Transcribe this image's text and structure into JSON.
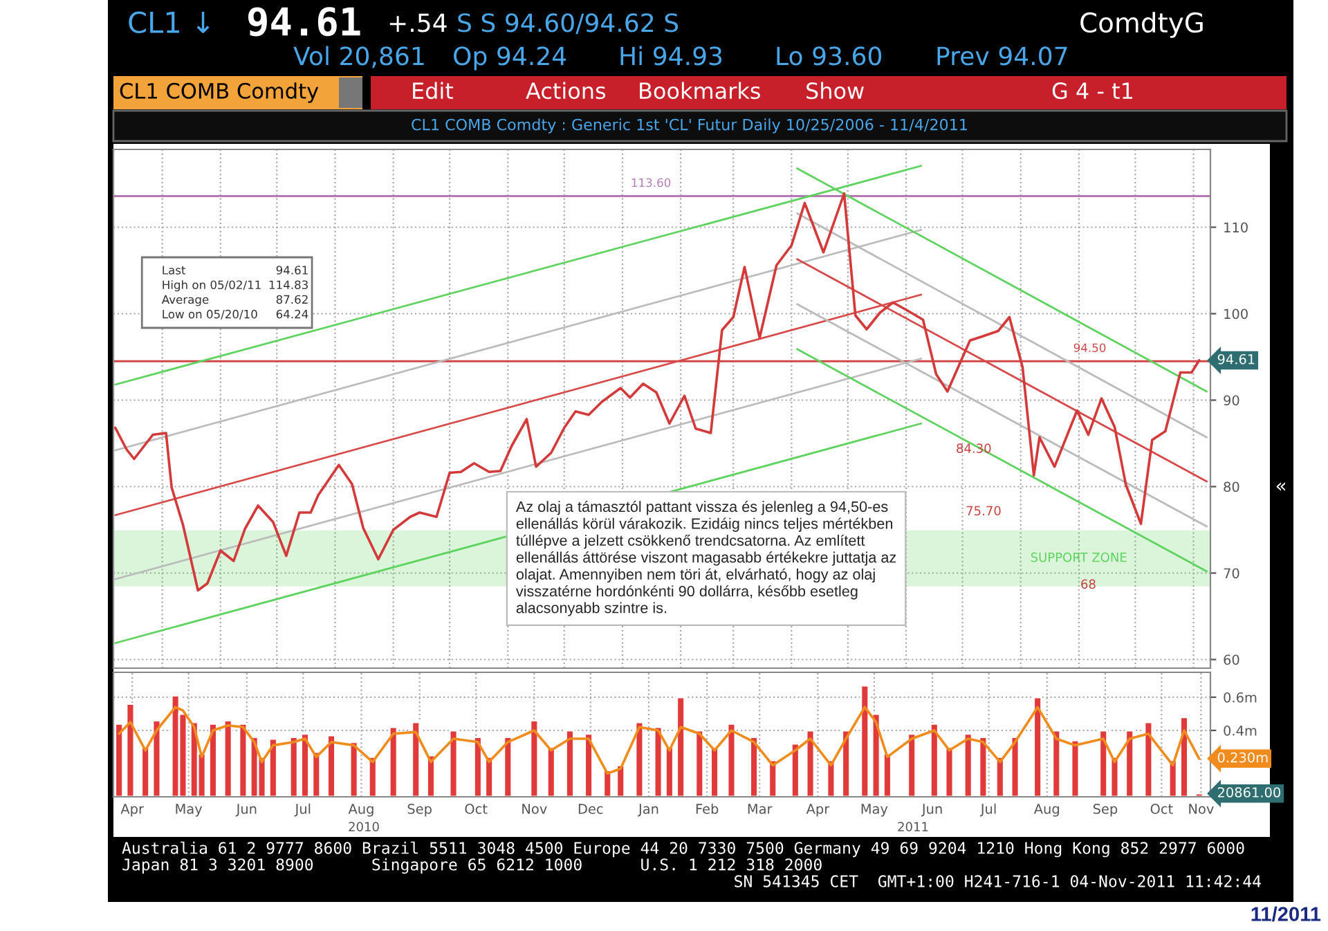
{
  "chart_data": [
    {
      "type": "other",
      "annotations": [
        "CL1 ↓",
        "94.61",
        "+.54",
        "S S 94.60/94.62 S",
        "ComdtyG",
        "Vol 20,861",
        "Op 94.24",
        "Hi 94.93",
        "Lo 93.60",
        "Prev 94.07",
        "CL1 COMB Comdty",
        "Edit",
        "Actions",
        "Bookmarks",
        "Show",
        "G 4 - t1",
        "CL1 COMB Comdty : Generic 1st 'CL' Futur Daily 10/25/2006 - 11/4/2011",
        "Australia 61 2 9777 8600 Brazil 5511 3048 4500 Europe 44 20 7330 7500 Germany 49 69 9204 1210 Hong Kong 852 2977 6000",
        "Japan 81 3 3201 8900      Singapore 65 6212 1000      U.S. 1 212 318 2000",
        "SN 541345 CET  GMT+1:00 H241-716-1 04-Nov-2011 11:42:44",
        "«",
        "11/2011"
      ]
    },
    {
      "type": "line",
      "x": [
        "2010-04-06",
        "2010-04-12",
        "2010-04-16",
        "2010-04-26",
        "2010-05-03",
        "2010-05-06",
        "2010-05-12",
        "2010-05-20",
        "2010-05-25",
        "2010-06-01",
        "2010-06-08",
        "2010-06-14",
        "2010-06-21",
        "2010-06-29",
        "2010-07-06",
        "2010-07-13",
        "2010-07-19",
        "2010-07-23",
        "2010-08-03",
        "2010-08-10",
        "2010-08-16",
        "2010-08-24",
        "2010-09-01",
        "2010-09-10",
        "2010-09-15",
        "2010-09-24",
        "2010-10-01",
        "2010-10-07",
        "2010-10-14",
        "2010-10-22",
        "2010-10-28",
        "2010-11-03",
        "2010-11-11",
        "2010-11-16",
        "2010-11-24",
        "2010-12-01",
        "2010-12-07",
        "2010-12-14",
        "2010-12-21",
        "2010-12-31",
        "2011-01-05",
        "2011-01-12",
        "2011-01-19",
        "2011-01-26",
        "2011-02-03",
        "2011-02-09",
        "2011-02-17",
        "2011-02-23",
        "2011-03-01",
        "2011-03-07",
        "2011-03-15",
        "2011-03-24",
        "2011-04-01",
        "2011-04-08",
        "2011-04-18",
        "2011-04-29",
        "2011-05-05",
        "2011-05-11",
        "2011-05-18",
        "2011-05-25",
        "2011-06-03",
        "2011-06-10",
        "2011-06-17",
        "2011-06-23",
        "2011-07-05",
        "2011-07-12",
        "2011-07-20",
        "2011-07-26",
        "2011-08-02",
        "2011-08-08",
        "2011-08-11",
        "2011-08-19",
        "2011-08-31",
        "2011-09-06",
        "2011-09-13",
        "2011-09-20",
        "2011-09-26",
        "2011-10-04",
        "2011-10-10",
        "2011-10-17",
        "2011-10-25",
        "2011-10-31",
        "2011-11-04"
      ],
      "series": [
        {
          "color": "#d33a3a",
          "values": [
            86.8,
            84.3,
            83.2,
            86.0,
            86.2,
            79.9,
            75.6,
            68.0,
            68.8,
            72.6,
            71.4,
            75.1,
            77.8,
            75.9,
            72.0,
            77.0,
            77.0,
            79.0,
            82.5,
            80.3,
            75.2,
            71.6,
            75.0,
            76.5,
            77.0,
            76.5,
            81.6,
            81.7,
            82.7,
            81.7,
            81.8,
            84.7,
            87.8,
            82.3,
            83.9,
            86.8,
            88.7,
            88.3,
            89.8,
            91.4,
            90.3,
            91.9,
            90.9,
            87.3,
            90.5,
            86.7,
            86.2,
            98.1,
            99.6,
            105.4,
            97.2,
            105.6,
            107.9,
            112.8,
            107.1,
            113.9,
            99.8,
            98.2,
            100.1,
            101.3,
            100.2,
            99.3,
            93.0,
            91.0,
            96.9,
            97.4,
            98.0,
            99.6,
            93.8,
            81.3,
            85.7,
            82.3,
            88.8,
            86.0,
            90.2,
            86.9,
            80.2,
            75.7,
            85.4,
            86.4,
            93.2,
            93.2,
            94.6
          ]
        },
        {
          "type": "line",
          "color": "#5fd35f",
          "x": [
            "2010-04-06",
            "2011-06-09"
          ],
          "values": [
            91.8,
            117.1
          ]
        },
        {
          "type": "line",
          "color": "#bbbbbb",
          "x": [
            "2010-04-06",
            "2011-06-09"
          ],
          "values": [
            84.2,
            109.7
          ]
        },
        {
          "type": "line",
          "color": "#d84a4a",
          "x": [
            "2010-04-06",
            "2011-06-09"
          ],
          "values": [
            76.7,
            102.2
          ]
        },
        {
          "type": "line",
          "color": "#bbbbbb",
          "x": [
            "2010-04-06",
            "2011-06-09"
          ],
          "values": [
            69.3,
            94.8
          ]
        },
        {
          "type": "line",
          "color": "#5fd35f",
          "x": [
            "2010-04-06",
            "2011-06-09"
          ],
          "values": [
            61.9,
            87.3
          ]
        },
        {
          "type": "line",
          "color": "#5fd35f",
          "x": [
            "2011-04-04",
            "2011-11-08"
          ],
          "values": [
            116.8,
            91.0
          ]
        },
        {
          "type": "line",
          "color": "#bbbbbb",
          "x": [
            "2011-04-04",
            "2011-11-08"
          ],
          "values": [
            111.6,
            85.7
          ]
        },
        {
          "type": "line",
          "color": "#d84a4a",
          "x": [
            "2011-04-04",
            "2011-11-08"
          ],
          "values": [
            106.3,
            80.6
          ]
        },
        {
          "type": "line",
          "color": "#bbbbbb",
          "x": [
            "2011-04-04",
            "2011-11-08"
          ],
          "values": [
            101.1,
            75.4
          ]
        },
        {
          "type": "line",
          "color": "#5fd35f",
          "x": [
            "2011-04-04",
            "2011-11-08"
          ],
          "values": [
            95.9,
            70.2
          ]
        }
      ],
      "xlim": [
        "2010-04-05",
        "2011-11-10"
      ],
      "xticks": [
        {
          "value": "2010-05-01",
          "label": null
        },
        {
          "value": "2010-06-01",
          "label": null
        },
        {
          "value": "2010-07-01",
          "label": null
        },
        {
          "value": "2010-08-01",
          "label": null
        },
        {
          "value": "2010-09-01",
          "label": null
        },
        {
          "value": "2010-10-01",
          "label": null
        },
        {
          "value": "2010-11-01",
          "label": null
        },
        {
          "value": "2010-12-01",
          "label": null
        },
        {
          "value": "2011-01-01",
          "label": null
        },
        {
          "value": "2011-02-01",
          "label": null
        },
        {
          "value": "2011-03-01",
          "label": null
        },
        {
          "value": "2011-04-01",
          "label": null
        },
        {
          "value": "2011-05-01",
          "label": null
        },
        {
          "value": "2011-06-01",
          "label": null
        },
        {
          "value": "2011-07-01",
          "label": null
        },
        {
          "value": "2011-08-01",
          "label": null
        },
        {
          "value": "2011-09-01",
          "label": null
        },
        {
          "value": "2011-10-01",
          "label": null
        },
        {
          "value": "2011-11-01",
          "label": null
        }
      ],
      "ylim": [
        59,
        119
      ],
      "yticks": [
        60,
        70,
        80,
        90,
        100,
        110
      ],
      "tick_labels": "y",
      "grid": true,
      "ref_lines": [
        {
          "axis": "y",
          "value": 113.6,
          "label": "113.60",
          "color": "#b57ab5"
        },
        {
          "axis": "y",
          "value": 94.5,
          "label": "94.50",
          "color": "#d04848"
        }
      ],
      "bands": [
        {
          "axis": "y",
          "from": 68.6,
          "to": 74.8,
          "label": "SUPPORT ZONE",
          "color": "#5fd35f"
        }
      ],
      "annotations": [
        "Az olaj a támasztól pattant vissza és jelenleg a 94,50-es\nellenállás körül várakozik. Ezidáig nincs teljes mértékben\ntúllépve a jelzett csökkenő trendcsatorna. Az említett\nellenállás áttörése viszont magasabb értékekre juttatja az\nolajat. Amennyiben nem töri át, elvárható, hogy az olaj\nvisszatérne hordónkénti 90 dollárra, később esetleg\nalacsonyabb szintre is.",
        "Last",
        "94.61",
        "High on 05/02/11",
        "114.83",
        "Average",
        "87.62",
        "Low on 05/20/10",
        "64.24",
        "94.61",
        {
          "text": "84.30",
          "x": "2011-07-07",
          "y": 84.3
        },
        "75.70",
        {
          "text": "68",
          "x": "2011-09-06",
          "y": 68.6
        }
      ]
    },
    {
      "type": "bar",
      "x": [
        "2010-04-08",
        "2010-04-14",
        "2010-04-22",
        "2010-04-28",
        "2010-05-08",
        "2010-05-12",
        "2010-05-18",
        "2010-05-22",
        "2010-05-28",
        "2010-06-05",
        "2010-06-13",
        "2010-06-19",
        "2010-06-23",
        "2010-06-29",
        "2010-07-10",
        "2010-07-16",
        "2010-07-22",
        "2010-07-30",
        "2010-08-11",
        "2010-08-21",
        "2010-09-01",
        "2010-09-13",
        "2010-09-21",
        "2010-10-03",
        "2010-10-16",
        "2010-10-22",
        "2010-11-01",
        "2010-11-15",
        "2010-11-24",
        "2010-12-04",
        "2010-12-14",
        "2010-12-24",
        "2010-12-31",
        "2011-01-10",
        "2011-01-20",
        "2011-01-26",
        "2011-02-01",
        "2011-02-11",
        "2011-02-19",
        "2011-02-28",
        "2011-03-12",
        "2011-03-22",
        "2011-04-03",
        "2011-04-11",
        "2011-04-22",
        "2011-04-30",
        "2011-05-10",
        "2011-05-16",
        "2011-05-22",
        "2011-06-04",
        "2011-06-16",
        "2011-06-24",
        "2011-07-04",
        "2011-07-12",
        "2011-07-21",
        "2011-07-29",
        "2011-08-10",
        "2011-08-20",
        "2011-08-30",
        "2011-09-14",
        "2011-09-20",
        "2011-09-28",
        "2011-10-08",
        "2011-10-21",
        "2011-10-27",
        "2011-11-04"
      ],
      "series": [
        {
          "type": "bar",
          "color": "#e03a3a",
          "values": [
            0.44,
            0.56,
            0.3,
            0.46,
            0.61,
            0.5,
            0.45,
            0.26,
            0.44,
            0.46,
            0.44,
            0.36,
            0.24,
            0.35,
            0.36,
            0.38,
            0.27,
            0.37,
            0.33,
            0.24,
            0.42,
            0.45,
            0.25,
            0.4,
            0.36,
            0.24,
            0.36,
            0.46,
            0.3,
            0.4,
            0.38,
            0.16,
            0.19,
            0.45,
            0.42,
            0.3,
            0.6,
            0.4,
            0.3,
            0.44,
            0.36,
            0.22,
            0.32,
            0.4,
            0.22,
            0.4,
            0.67,
            0.5,
            0.26,
            0.38,
            0.44,
            0.3,
            0.38,
            0.36,
            0.24,
            0.36,
            0.6,
            0.4,
            0.34,
            0.4,
            0.24,
            0.4,
            0.45,
            0.22,
            0.48,
            0.02
          ]
        },
        {
          "type": "line",
          "color": "#f08c1e",
          "values": [
            0.38,
            0.45,
            0.28,
            0.4,
            0.54,
            0.52,
            0.42,
            0.24,
            0.4,
            0.43,
            0.42,
            0.33,
            0.21,
            0.31,
            0.33,
            0.35,
            0.24,
            0.33,
            0.31,
            0.21,
            0.38,
            0.39,
            0.21,
            0.35,
            0.33,
            0.21,
            0.33,
            0.4,
            0.28,
            0.35,
            0.35,
            0.14,
            0.17,
            0.42,
            0.4,
            0.28,
            0.42,
            0.38,
            0.28,
            0.4,
            0.33,
            0.19,
            0.28,
            0.35,
            0.19,
            0.35,
            0.54,
            0.45,
            0.24,
            0.35,
            0.4,
            0.28,
            0.35,
            0.33,
            0.21,
            0.33,
            0.54,
            0.35,
            0.31,
            0.35,
            0.21,
            0.35,
            0.38,
            0.19,
            0.4,
            0.23
          ]
        }
      ],
      "xlim": [
        "2010-04-05",
        "2011-11-10"
      ],
      "xticks": [
        {
          "value": "2010-04-15",
          "label": "Apr"
        },
        {
          "value": "2010-05-15",
          "label": "May"
        },
        {
          "value": "2010-06-15",
          "label": "Jun"
        },
        {
          "value": "2010-07-15",
          "label": "Jul"
        },
        {
          "value": "2010-08-15",
          "label": "Aug"
        },
        {
          "value": "2010-09-15",
          "label": "Sep"
        },
        {
          "value": "2010-10-15",
          "label": "Oct"
        },
        {
          "value": "2010-11-15",
          "label": "Nov"
        },
        {
          "value": "2010-12-15",
          "label": "Dec"
        },
        {
          "value": "2011-01-15",
          "label": "Jan"
        },
        {
          "value": "2011-02-15",
          "label": "Feb"
        },
        {
          "value": "2011-03-15",
          "label": "Mar"
        },
        {
          "value": "2011-04-15",
          "label": "Apr"
        },
        {
          "value": "2011-05-15",
          "label": "May"
        },
        {
          "value": "2011-06-15",
          "label": "Jun"
        },
        {
          "value": "2011-07-15",
          "label": "Jul"
        },
        {
          "value": "2011-08-15",
          "label": "Aug"
        },
        {
          "value": "2011-09-15",
          "label": "Sep"
        },
        {
          "value": "2011-10-15",
          "label": "Oct"
        },
        {
          "value": "2011-11-05",
          "label": "Nov"
        }
      ],
      "ylim": [
        0,
        0.75
      ],
      "yticks": [
        {
          "value": 0.4,
          "label": "0.4m"
        },
        {
          "value": 0.6,
          "label": "0.6m"
        }
      ],
      "grid": true,
      "annotations": [
        "0.230m",
        "20861.00",
        "2010",
        "2011"
      ]
    }
  ]
}
